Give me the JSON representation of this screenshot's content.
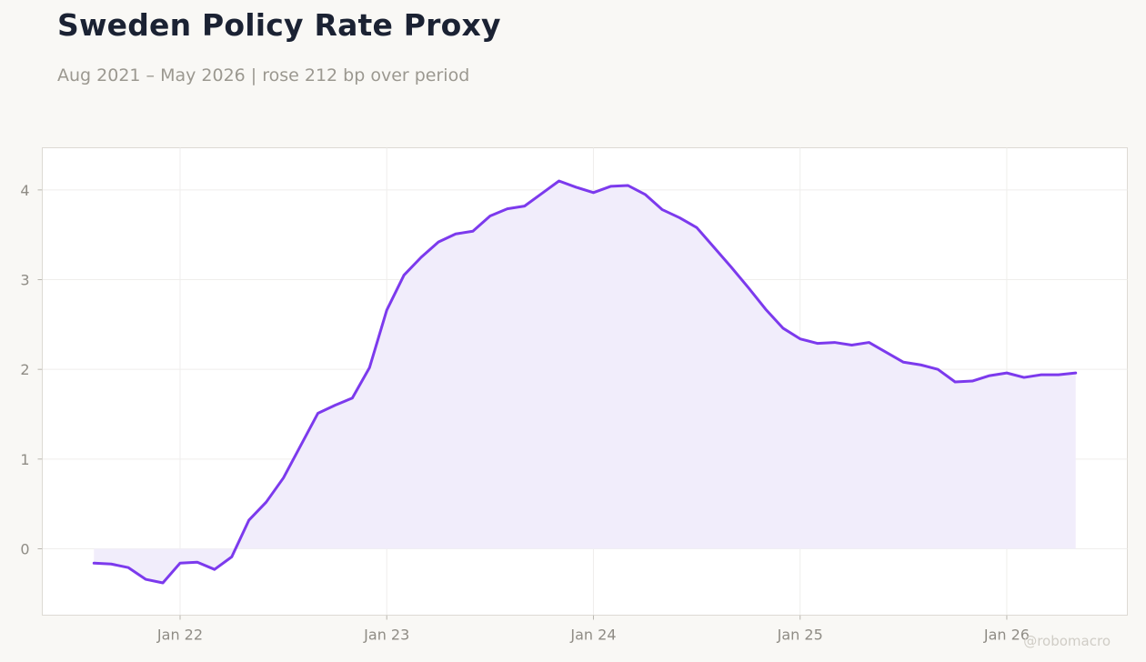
{
  "title": "Sweden Policy Rate Proxy",
  "subtitle": "Aug 2021 – May 2026 | rose 212 bp over period",
  "watermark": "@robomacro",
  "colors": {
    "line": "#7c3aed",
    "fill": "#f1edfb",
    "background": "#f9f8f5",
    "plot_background": "#ffffff",
    "grid": "#efeeec",
    "title": "#1b2233",
    "subtitle": "#9b9890",
    "tick": "#8f8c85"
  },
  "chart_data": {
    "type": "area",
    "title": "Sweden Policy Rate Proxy",
    "subtitle": "Aug 2021 – May 2026 | rose 212 bp over period",
    "xlabel": "",
    "ylabel": "",
    "grid": true,
    "legend": "none",
    "x_ticks": [
      {
        "label": "Jan 22",
        "date": "2022-01"
      },
      {
        "label": "Jan 23",
        "date": "2023-01"
      },
      {
        "label": "Jan 24",
        "date": "2024-01"
      },
      {
        "label": "Jan 25",
        "date": "2025-01"
      },
      {
        "label": "Jan 26",
        "date": "2026-01"
      }
    ],
    "y_ticks": [
      0,
      1,
      2,
      3,
      4
    ],
    "xlim": [
      "2021-05",
      "2026-08"
    ],
    "ylim": [
      -0.74,
      4.47
    ],
    "series": [
      {
        "x": [
          "2021-08",
          "2021-09",
          "2021-10",
          "2021-11",
          "2021-12",
          "2022-01",
          "2022-02",
          "2022-03",
          "2022-04",
          "2022-05",
          "2022-06",
          "2022-07",
          "2022-08",
          "2022-09",
          "2022-10",
          "2022-11",
          "2022-12",
          "2023-01",
          "2023-02",
          "2023-03",
          "2023-04",
          "2023-05",
          "2023-06",
          "2023-07",
          "2023-08",
          "2023-09",
          "2023-10",
          "2023-11",
          "2023-12",
          "2024-01",
          "2024-02",
          "2024-03",
          "2024-04",
          "2024-05",
          "2024-06",
          "2024-07",
          "2024-08",
          "2024-09",
          "2024-10",
          "2024-11",
          "2024-12",
          "2025-01",
          "2025-02",
          "2025-03",
          "2025-04",
          "2025-05",
          "2025-06",
          "2025-07",
          "2025-08",
          "2025-09",
          "2025-10",
          "2025-11",
          "2025-12",
          "2026-01",
          "2026-02",
          "2026-03",
          "2026-04",
          "2026-05"
        ],
        "values": [
          -0.16,
          -0.17,
          -0.21,
          -0.34,
          -0.38,
          -0.16,
          -0.15,
          -0.23,
          -0.09,
          0.32,
          0.52,
          0.79,
          1.15,
          1.51,
          1.6,
          1.68,
          2.02,
          2.66,
          3.05,
          3.25,
          3.42,
          3.51,
          3.54,
          3.71,
          3.79,
          3.82,
          3.96,
          4.1,
          4.03,
          3.97,
          4.04,
          4.05,
          3.95,
          3.78,
          3.69,
          3.58,
          3.36,
          3.14,
          2.91,
          2.67,
          2.46,
          2.34,
          2.29,
          2.3,
          2.27,
          2.3,
          2.19,
          2.08,
          2.05,
          2.0,
          1.86,
          1.87,
          1.93,
          1.96,
          1.91,
          1.94,
          1.94,
          1.96
        ]
      }
    ]
  }
}
